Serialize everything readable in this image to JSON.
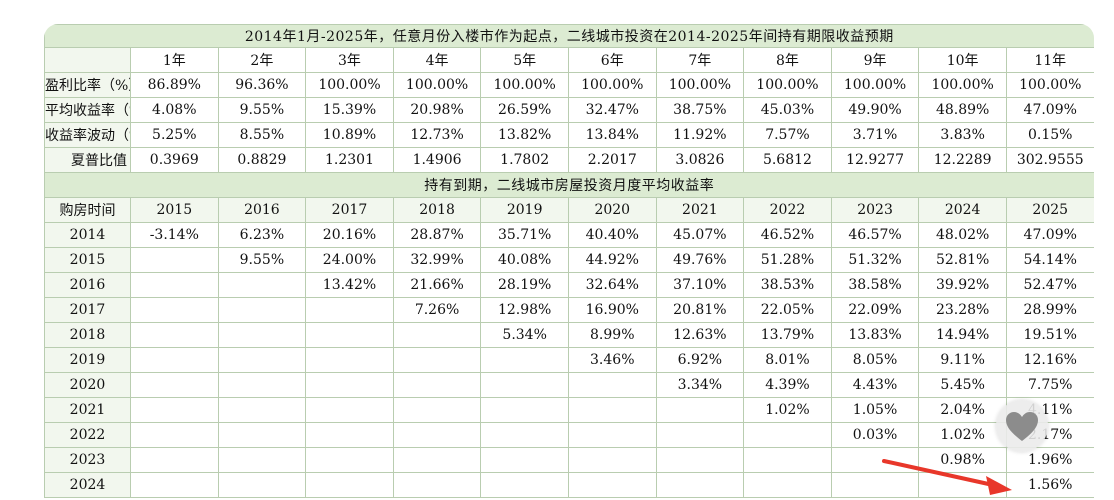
{
  "section1": {
    "title": "2014年1月-2025年，任意月份入楼市作为起点，二线城市投资在2014-2025年间持有期限收益预期",
    "year_headers": [
      "1年",
      "2年",
      "3年",
      "4年",
      "5年",
      "6年",
      "7年",
      "8年",
      "9年",
      "10年",
      "11年"
    ],
    "rows": [
      {
        "label": "盈利比率（%）",
        "values": [
          "86.89%",
          "96.36%",
          "100.00%",
          "100.00%",
          "100.00%",
          "100.00%",
          "100.00%",
          "100.00%",
          "100.00%",
          "100.00%",
          "100.00%"
        ]
      },
      {
        "label": "平均收益率（%）",
        "values": [
          "4.08%",
          "9.55%",
          "15.39%",
          "20.98%",
          "26.59%",
          "32.47%",
          "38.75%",
          "45.03%",
          "49.90%",
          "48.89%",
          "47.09%"
        ]
      },
      {
        "label": "收益率波动（%）",
        "values": [
          "5.25%",
          "8.55%",
          "10.89%",
          "12.73%",
          "13.82%",
          "13.84%",
          "11.92%",
          "7.57%",
          "3.71%",
          "3.83%",
          "0.15%"
        ]
      },
      {
        "label": "夏普比值",
        "values": [
          "0.3969",
          "0.8829",
          "1.2301",
          "1.4906",
          "1.7802",
          "2.2017",
          "3.0826",
          "5.6812",
          "12.9277",
          "12.2289",
          "302.9555"
        ]
      }
    ]
  },
  "section2": {
    "title": "持有到期，二线城市房屋投资月度平均收益率",
    "corner_label": "购房时间",
    "col_headers": [
      "2015",
      "2016",
      "2017",
      "2018",
      "2019",
      "2020",
      "2021",
      "2022",
      "2023",
      "2024",
      "2025"
    ],
    "rows": [
      {
        "label": "2014",
        "values": [
          "-3.14%",
          "6.23%",
          "20.16%",
          "28.87%",
          "35.71%",
          "40.40%",
          "45.07%",
          "46.52%",
          "46.57%",
          "48.02%",
          "47.09%"
        ]
      },
      {
        "label": "2015",
        "values": [
          "",
          "9.55%",
          "24.00%",
          "32.99%",
          "40.08%",
          "44.92%",
          "49.76%",
          "51.28%",
          "51.32%",
          "52.81%",
          "54.14%"
        ]
      },
      {
        "label": "2016",
        "values": [
          "",
          "",
          "13.42%",
          "21.66%",
          "28.19%",
          "32.64%",
          "37.10%",
          "38.53%",
          "38.58%",
          "39.92%",
          "52.47%"
        ]
      },
      {
        "label": "2017",
        "values": [
          "",
          "",
          "",
          "7.26%",
          "12.98%",
          "16.90%",
          "20.81%",
          "22.05%",
          "22.09%",
          "23.28%",
          "28.99%"
        ]
      },
      {
        "label": "2018",
        "values": [
          "",
          "",
          "",
          "",
          "5.34%",
          "8.99%",
          "12.63%",
          "13.79%",
          "13.83%",
          "14.94%",
          "19.51%"
        ]
      },
      {
        "label": "2019",
        "values": [
          "",
          "",
          "",
          "",
          "",
          "3.46%",
          "6.92%",
          "8.01%",
          "8.05%",
          "9.11%",
          "12.16%"
        ]
      },
      {
        "label": "2020",
        "values": [
          "",
          "",
          "",
          "",
          "",
          "",
          "3.34%",
          "4.39%",
          "4.43%",
          "5.45%",
          "7.75%"
        ]
      },
      {
        "label": "2021",
        "values": [
          "",
          "",
          "",
          "",
          "",
          "",
          "",
          "1.02%",
          "1.05%",
          "2.04%",
          "4.11%"
        ]
      },
      {
        "label": "2022",
        "values": [
          "",
          "",
          "",
          "",
          "",
          "",
          "",
          "",
          "0.03%",
          "1.02%",
          "2.17%"
        ]
      },
      {
        "label": "2023",
        "values": [
          "",
          "",
          "",
          "",
          "",
          "",
          "",
          "",
          "",
          "0.98%",
          "1.96%"
        ]
      },
      {
        "label": "2024",
        "values": [
          "",
          "",
          "",
          "",
          "",
          "",
          "",
          "",
          "",
          "",
          "1.56%"
        ]
      }
    ]
  },
  "overlay": {
    "heart_icon": "heart-icon",
    "arrow_color": "#e8372a"
  }
}
